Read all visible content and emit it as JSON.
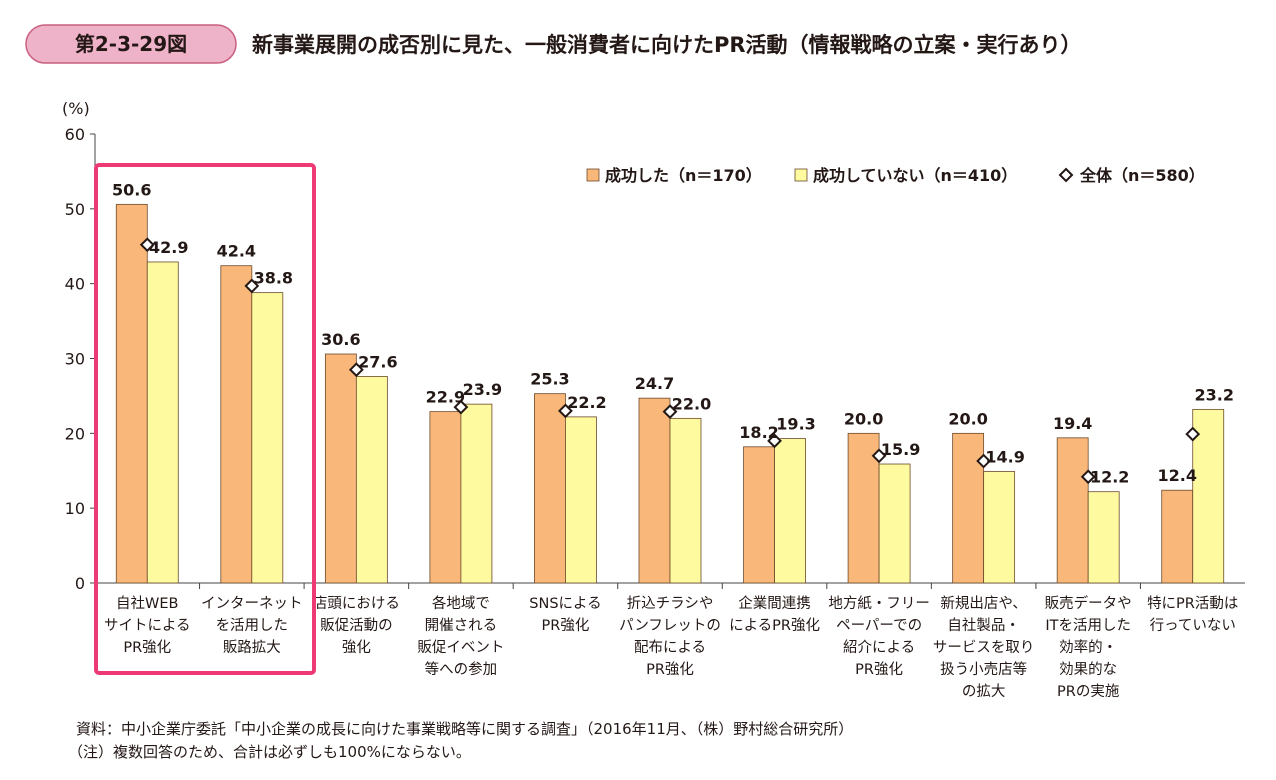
{
  "header": {
    "figure_number": "第2-3-29図",
    "title": "新事業展開の成否別に見た、一般消費者に向けたPR活動（情報戦略の立案・実行あり）"
  },
  "colors": {
    "success": "#f9b77a",
    "not_success": "#fdfaa0",
    "bar_stroke": "#6b4a2a",
    "highlight": "#ee3a74",
    "pill_fill": "#eeb2c9",
    "pill_stroke": "#c9607f"
  },
  "chart_data": {
    "type": "bar",
    "title": "新事業展開の成否別に見た、一般消費者に向けたPR活動（情報戦略の立案・実行あり）",
    "ylabel": "(%)",
    "ylim": [
      0,
      60
    ],
    "yticks": [
      0,
      10,
      20,
      30,
      40,
      50,
      60
    ],
    "legend_position": "top-right",
    "highlighted_categories": [
      0,
      1
    ],
    "categories": [
      [
        "自社WEB",
        "サイトによる",
        "PR強化"
      ],
      [
        "インターネット",
        "を活用した",
        "販路拡大"
      ],
      [
        "店頭における",
        "販促活動の",
        "強化"
      ],
      [
        "各地域で",
        "開催される",
        "販促イベント",
        "等への参加"
      ],
      [
        "SNSによる",
        "PR強化"
      ],
      [
        "折込チラシや",
        "パンフレットの",
        "配布による",
        "PR強化"
      ],
      [
        "企業間連携",
        "によるPR強化"
      ],
      [
        "地方紙・フリー",
        "ペーパーでの",
        "紹介による",
        "PR強化"
      ],
      [
        "新規出店や、",
        "自社製品・",
        "サービスを取り",
        "扱う小売店等",
        "の拡大"
      ],
      [
        "販売データや",
        "ITを活用した",
        "効率的・",
        "効果的な",
        "PRの実施"
      ],
      [
        "特にPR活動は",
        "行っていない"
      ]
    ],
    "series": [
      {
        "name": "成功した（n＝170）",
        "kind": "bar",
        "values": [
          50.6,
          42.4,
          30.6,
          22.9,
          25.3,
          24.7,
          18.2,
          20.0,
          20.0,
          19.4,
          12.4
        ]
      },
      {
        "name": "成功していない（n＝410）",
        "kind": "bar",
        "values": [
          42.9,
          38.8,
          27.6,
          23.9,
          22.2,
          22.0,
          19.3,
          15.9,
          14.9,
          12.2,
          23.2
        ]
      },
      {
        "name": "全体（n＝580）",
        "kind": "marker",
        "values": [
          45.2,
          39.7,
          28.5,
          23.5,
          23.0,
          22.9,
          19.0,
          17.0,
          16.3,
          14.2,
          19.9
        ]
      }
    ]
  },
  "footer": {
    "source": "資料：中小企業庁委託「中小企業の成長に向けた事業戦略等に関する調査」（2016年11月、（株）野村総合研究所）",
    "note": "（注）複数回答のため、合計は必ずしも100%にならない。"
  }
}
